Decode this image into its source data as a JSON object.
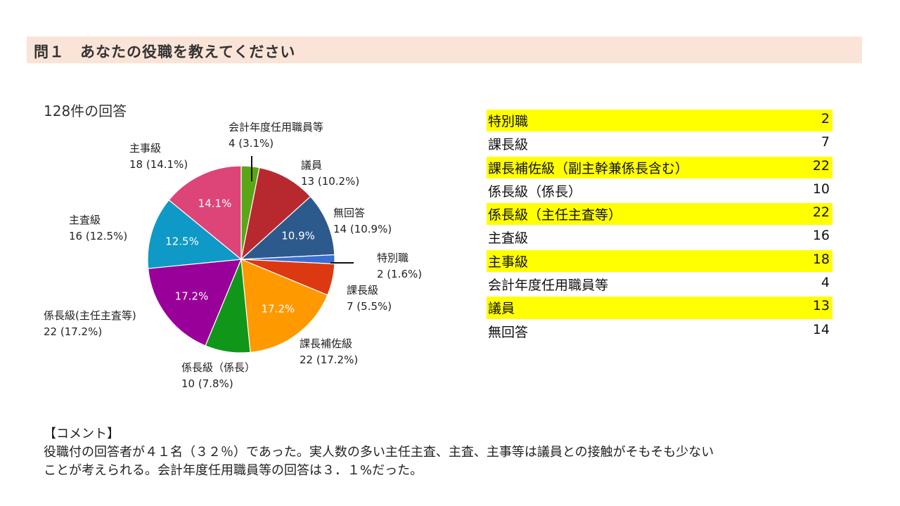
{
  "title": "問１　あなたの役職を教えてください",
  "response_count": "128件の回答",
  "chart_data": {
    "type": "pie",
    "total": 128,
    "slices": [
      {
        "callout": "会計年度任用職員等",
        "value": 4,
        "percent": "3.1%",
        "color": "#5aa617",
        "inner_label": ""
      },
      {
        "callout": "議員",
        "value": 13,
        "percent": "10.2%",
        "color": "#b8292f",
        "inner_label": ""
      },
      {
        "callout": "無回答",
        "value": 14,
        "percent": "10.9%",
        "color": "#2c5a8c",
        "inner_label": "10.9%"
      },
      {
        "callout": "特別職",
        "value": 2,
        "percent": "1.6%",
        "color": "#3a6fd0",
        "inner_label": ""
      },
      {
        "callout": "課長級",
        "value": 7,
        "percent": "5.5%",
        "color": "#dc3912",
        "inner_label": ""
      },
      {
        "callout": "課長補佐級",
        "value": 22,
        "percent": "17.2%",
        "color": "#ff9900",
        "inner_label": "17.2%"
      },
      {
        "callout": "係長級（係長）",
        "value": 10,
        "percent": "7.8%",
        "color": "#109618",
        "inner_label": ""
      },
      {
        "callout": "係長級(主任主査等)",
        "value": 22,
        "percent": "17.2%",
        "color": "#990099",
        "inner_label": "17.2%"
      },
      {
        "callout": "主査級",
        "value": 16,
        "percent": "12.5%",
        "color": "#0e99c6",
        "inner_label": "12.5%"
      },
      {
        "callout": "主事級",
        "value": 18,
        "percent": "14.1%",
        "color": "#dd4477",
        "inner_label": "14.1%"
      }
    ]
  },
  "table": {
    "rows": [
      {
        "label": "特別職",
        "value": "2",
        "highlight": true
      },
      {
        "label": "課長級",
        "value": "7",
        "highlight": false
      },
      {
        "label": "課長補佐級（副主幹兼係長含む）",
        "value": "22",
        "highlight": true
      },
      {
        "label": "係長級（係長）",
        "value": "10",
        "highlight": false
      },
      {
        "label": "係長級（主任主査等）",
        "value": "22",
        "highlight": true
      },
      {
        "label": "主査級",
        "value": "16",
        "highlight": false
      },
      {
        "label": "主事級",
        "value": "18",
        "highlight": true
      },
      {
        "label": "会計年度任用職員等",
        "value": "4",
        "highlight": false
      },
      {
        "label": "議員",
        "value": "13",
        "highlight": true
      },
      {
        "label": "無回答",
        "value": "14",
        "highlight": false
      }
    ]
  },
  "comment": {
    "heading": "【コメント】",
    "line1": "役職付の回答者が４１名（３２％）であった。実人数の多い主任主査、主査、主事等は議員との接触がそもそも少ない",
    "line2": "ことが考えられる。会計年度任用職員等の回答は３．１%だった。"
  }
}
